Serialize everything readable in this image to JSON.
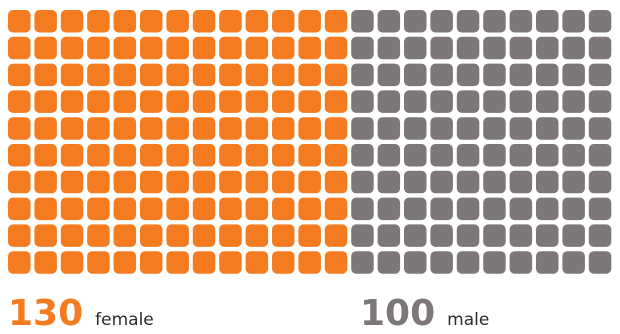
{
  "chart_data": {
    "type": "waffle",
    "rows": 10,
    "series": [
      {
        "name": "female",
        "value": 130,
        "units": 130,
        "color": "#f47b20"
      },
      {
        "name": "male",
        "value": 100,
        "units": 100,
        "color": "#7d7778"
      }
    ]
  },
  "legend": {
    "female": {
      "value": "130",
      "label": "female",
      "color": "#f47b20"
    },
    "male": {
      "value": "100",
      "label": "male",
      "color": "#7d7778"
    }
  }
}
